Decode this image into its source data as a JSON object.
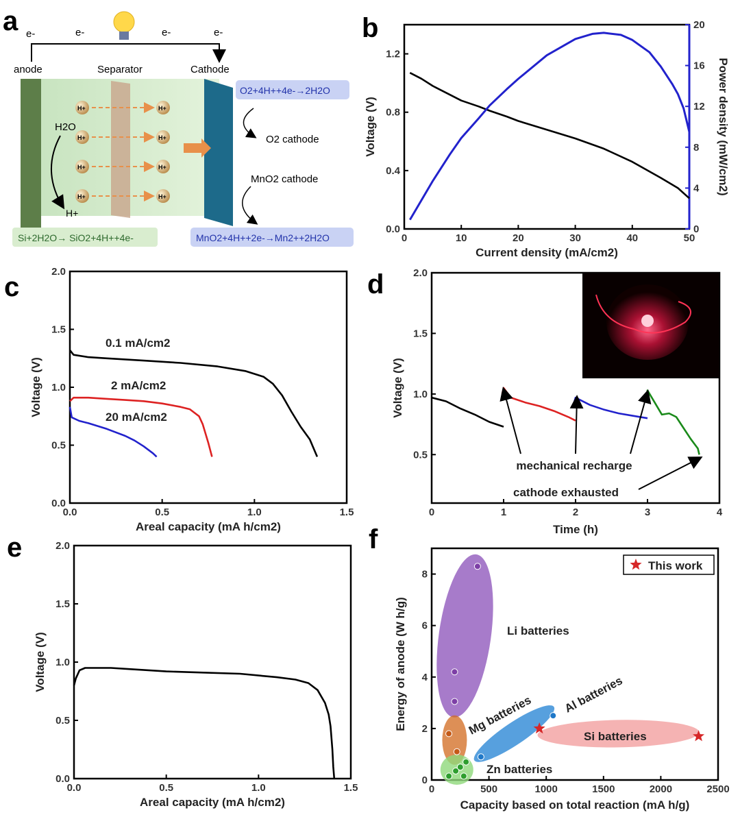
{
  "panel_labels": [
    "a",
    "b",
    "c",
    "d",
    "e",
    "f"
  ],
  "schematic": {
    "electrons": [
      "e-",
      "e-",
      "e-",
      "e-"
    ],
    "anode": "anode",
    "separator": "Separator",
    "cathode": "Cathode",
    "water": "H2O",
    "proton": "H+",
    "proton_markers": [
      "H+",
      "H+",
      "H+",
      "H+",
      "H+",
      "H+",
      "H+",
      "H+"
    ],
    "o2_reaction": "O2+4H++4e-→2H2O",
    "o2_cathode": "O2 cathode",
    "mno2_cathode": "MnO2 cathode",
    "mno2_reaction": "MnO2+4H++2e-→Mn2++2H2O",
    "anode_reaction": "Si+2H2O→ SiO2+4H++4e-"
  },
  "chart_data": [
    {
      "panel": "b",
      "type": "line",
      "xlabel": "Current density (mA/cm2)",
      "ylabel": "Voltage (V)",
      "y2label": "Power density (mW/cm2)",
      "xlim": [
        0,
        50
      ],
      "ylim": [
        0,
        1.4
      ],
      "y2lim": [
        0,
        20
      ],
      "xticks": [
        "0",
        "10",
        "20",
        "30",
        "40",
        "50"
      ],
      "yticks": [
        "0.0",
        "0.4",
        "0.8",
        "1.2"
      ],
      "y2ticks": [
        "0",
        "4",
        "8",
        "12",
        "16",
        "20"
      ],
      "series": [
        {
          "axis": "left",
          "color": "#000000",
          "x": [
            1,
            3,
            5,
            8,
            10,
            13,
            15,
            18,
            20,
            25,
            30,
            35,
            40,
            45,
            48,
            50
          ],
          "y": [
            1.07,
            1.03,
            0.98,
            0.92,
            0.88,
            0.84,
            0.81,
            0.77,
            0.74,
            0.68,
            0.62,
            0.55,
            0.46,
            0.35,
            0.28,
            0.21
          ]
        },
        {
          "axis": "right",
          "color": "#2222cc",
          "x": [
            1,
            3,
            5,
            8,
            10,
            13,
            15,
            18,
            20,
            25,
            30,
            33,
            35,
            38,
            40,
            43,
            45,
            47,
            48,
            49,
            50
          ],
          "y": [
            0.9,
            2.8,
            4.7,
            7.3,
            8.9,
            10.8,
            12.1,
            13.7,
            14.7,
            17.0,
            18.6,
            19.1,
            19.2,
            19.0,
            18.5,
            17.3,
            15.9,
            14.2,
            13.2,
            11.8,
            9.5
          ]
        }
      ]
    },
    {
      "panel": "c",
      "type": "line",
      "xlabel": "Areal capacity (mA h/cm2)",
      "ylabel": "Voltage (V)",
      "xlim": [
        0,
        1.5
      ],
      "ylim": [
        0,
        2.0
      ],
      "xticks": [
        "0.0",
        "0.5",
        "1.0",
        "1.5"
      ],
      "yticks": [
        "0.0",
        "0.5",
        "1.0",
        "1.5",
        "2.0"
      ],
      "series": [
        {
          "name": "0.1 mA/cm2",
          "color": "#000000",
          "x": [
            0,
            0.02,
            0.1,
            0.2,
            0.4,
            0.6,
            0.8,
            0.95,
            1.05,
            1.1,
            1.15,
            1.2,
            1.25,
            1.3,
            1.34
          ],
          "y": [
            1.32,
            1.28,
            1.26,
            1.25,
            1.23,
            1.21,
            1.18,
            1.14,
            1.09,
            1.03,
            0.93,
            0.79,
            0.66,
            0.55,
            0.4
          ]
        },
        {
          "name": "2 mA/cm2",
          "color": "#dd2222",
          "x": [
            0,
            0.02,
            0.1,
            0.2,
            0.3,
            0.4,
            0.5,
            0.6,
            0.65,
            0.7,
            0.72,
            0.75,
            0.77
          ],
          "y": [
            0.88,
            0.91,
            0.91,
            0.9,
            0.89,
            0.88,
            0.86,
            0.83,
            0.81,
            0.75,
            0.68,
            0.52,
            0.4
          ]
        },
        {
          "name": "20 mA/cm2",
          "color": "#2222cc",
          "x": [
            0,
            0.01,
            0.05,
            0.1,
            0.2,
            0.3,
            0.35,
            0.4,
            0.45,
            0.47
          ],
          "y": [
            0.83,
            0.74,
            0.71,
            0.69,
            0.64,
            0.58,
            0.54,
            0.49,
            0.43,
            0.4
          ]
        }
      ]
    },
    {
      "panel": "d",
      "type": "line",
      "xlabel": "Time (h)",
      "ylabel": "Voltage (V)",
      "xlim": [
        0,
        4
      ],
      "ylim": [
        0.1,
        2.0
      ],
      "xticks": [
        "0",
        "1",
        "2",
        "3",
        "4"
      ],
      "yticks": [
        "0.5",
        "1.0",
        "1.5",
        "2.0"
      ],
      "annotations": [
        "mechanical recharge",
        "cathode exhausted"
      ],
      "series": [
        {
          "color": "#000000",
          "x": [
            0,
            0.2,
            0.4,
            0.6,
            0.8,
            1.0
          ],
          "y": [
            0.97,
            0.94,
            0.88,
            0.83,
            0.77,
            0.73
          ]
        },
        {
          "color": "#dd2222",
          "x": [
            0.98,
            1.0,
            1.1,
            1.3,
            1.5,
            1.7,
            1.9,
            2.0
          ],
          "y": [
            1.0,
            1.05,
            0.97,
            0.93,
            0.9,
            0.86,
            0.81,
            0.78
          ]
        },
        {
          "color": "#2222cc",
          "x": [
            1.98,
            2.0,
            2.2,
            2.4,
            2.6,
            2.8,
            3.0
          ],
          "y": [
            0.93,
            0.97,
            0.91,
            0.87,
            0.84,
            0.82,
            0.8
          ]
        },
        {
          "color": "#1a8a1a",
          "x": [
            2.98,
            3.0,
            3.1,
            3.2,
            3.3,
            3.4,
            3.5,
            3.6,
            3.7,
            3.72
          ],
          "y": [
            0.95,
            1.03,
            0.93,
            0.83,
            0.84,
            0.81,
            0.72,
            0.63,
            0.55,
            0.5
          ]
        }
      ]
    },
    {
      "panel": "e",
      "type": "line",
      "xlabel": "Areal capacity (mA h/cm2)",
      "ylabel": "Voltage (V)",
      "xlim": [
        0,
        1.5
      ],
      "ylim": [
        0,
        2.0
      ],
      "xticks": [
        "0.0",
        "0.5",
        "1.0",
        "1.5"
      ],
      "yticks": [
        "0.0",
        "0.5",
        "1.0",
        "1.5",
        "2.0"
      ],
      "series": [
        {
          "color": "#000000",
          "x": [
            0,
            0.01,
            0.03,
            0.06,
            0.1,
            0.2,
            0.3,
            0.5,
            0.7,
            0.9,
            1.1,
            1.2,
            1.27,
            1.32,
            1.36,
            1.38,
            1.39,
            1.4,
            1.405,
            1.41
          ],
          "y": [
            0.8,
            0.86,
            0.93,
            0.95,
            0.95,
            0.95,
            0.94,
            0.92,
            0.91,
            0.9,
            0.87,
            0.85,
            0.82,
            0.76,
            0.65,
            0.55,
            0.45,
            0.25,
            0.1,
            0.0
          ]
        }
      ]
    },
    {
      "panel": "f",
      "type": "scatter",
      "xlabel": "Capacity based on total reaction (mA h/g)",
      "ylabel": "Energy of anode (W h/g)",
      "xlim": [
        0,
        2500
      ],
      "ylim": [
        0,
        9
      ],
      "xticks": [
        "0",
        "500",
        "1000",
        "1500",
        "2000",
        "2500"
      ],
      "yticks": [
        "0",
        "2",
        "4",
        "6",
        "8"
      ],
      "legend": "This work",
      "groups": [
        {
          "name": "Li batteries",
          "color": "#7d3fa6",
          "x": [
            400,
            200,
            200
          ],
          "y": [
            8.3,
            4.2,
            3.05
          ]
        },
        {
          "name": "Mg batteries",
          "color": "#c45a18",
          "x": [
            150,
            220
          ],
          "y": [
            1.8,
            1.1
          ]
        },
        {
          "name": "Al batteries",
          "color": "#1f78c8",
          "x": [
            1060,
            430
          ],
          "y": [
            2.5,
            0.9
          ]
        },
        {
          "name": "Zn batteries",
          "color": "#2e9e2e",
          "x": [
            150,
            210,
            250,
            280,
            300
          ],
          "y": [
            0.15,
            0.35,
            0.5,
            0.15,
            0.7
          ]
        },
        {
          "name": "Si batteries",
          "color": "#d62728",
          "x": [
            940,
            2330
          ],
          "y": [
            2.0,
            1.7
          ]
        }
      ],
      "this_work": {
        "x": [
          940,
          2330
        ],
        "y": [
          2.0,
          1.7
        ]
      }
    }
  ]
}
